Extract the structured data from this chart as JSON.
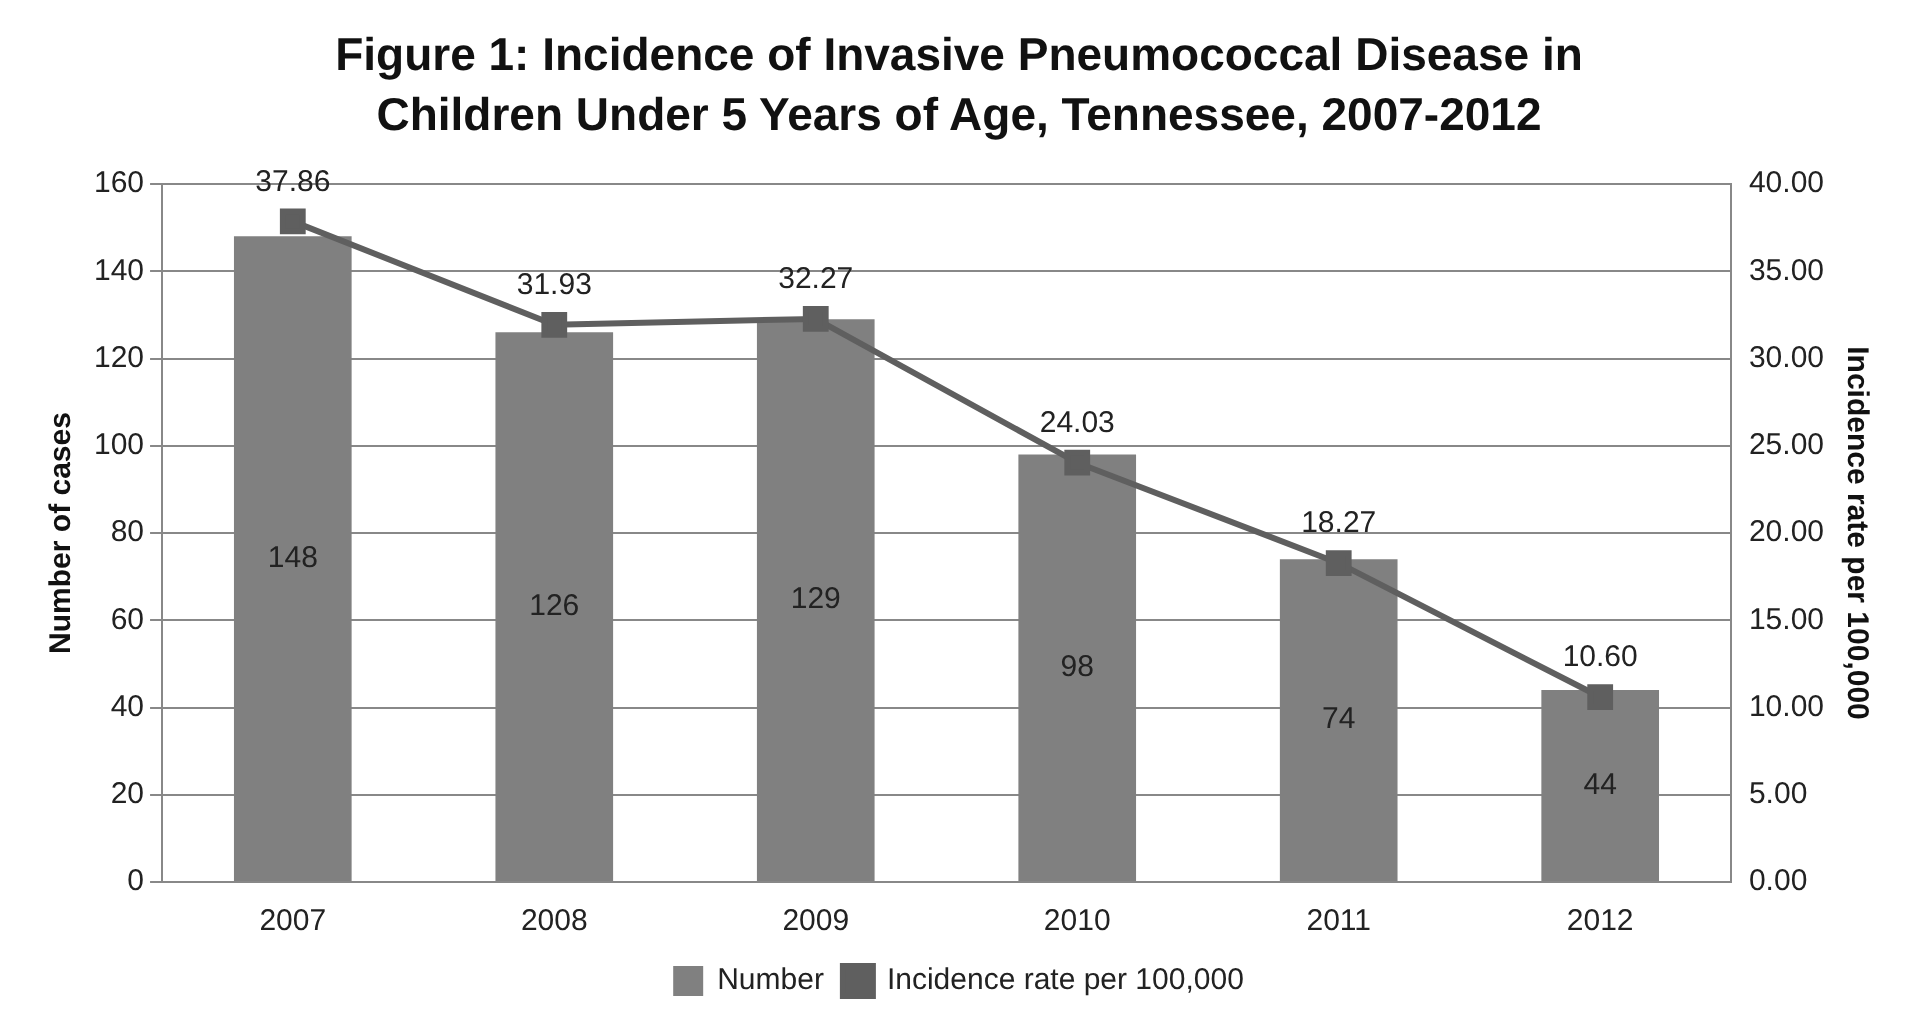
{
  "chart_data": {
    "type": "bar",
    "title": "Figure 1: Incidence of Invasive Pneumococcal Disease in Children Under 5 Years of Age, Tennessee, 2007-2012",
    "ylabel": "Number of cases",
    "y2label": "Incidence rate per 100,000",
    "categories": [
      "2007",
      "2008",
      "2009",
      "2010",
      "2011",
      "2012"
    ],
    "series": [
      {
        "name": "Number",
        "color": "#808080",
        "values": [
          148,
          126,
          129,
          98,
          74,
          44
        ],
        "value_labels": [
          "148",
          "126",
          "129",
          "98",
          "74",
          "44"
        ]
      },
      {
        "name": "Incidence rate per 100,000",
        "type": "line",
        "axis": "y2",
        "color": "#5f5f5f",
        "values": [
          37.86,
          31.93,
          32.27,
          24.03,
          18.27,
          10.6
        ],
        "value_labels": [
          "37.86",
          "31.93",
          "32.27",
          "24.03",
          "18.27",
          "10.60"
        ]
      }
    ],
    "ylim": [
      0,
      160
    ],
    "yticks": [
      0,
      20,
      40,
      60,
      80,
      100,
      120,
      140,
      160
    ],
    "y2lim": [
      0,
      40
    ],
    "y2ticks": [
      {
        "value": 0,
        "label": "0.00"
      },
      {
        "value": 5,
        "label": "5.00"
      },
      {
        "value": 10,
        "label": "10.00"
      },
      {
        "value": 15,
        "label": "15.00"
      },
      {
        "value": 20,
        "label": "20.00"
      },
      {
        "value": 25,
        "label": "25.00"
      },
      {
        "value": 30,
        "label": "30.00"
      },
      {
        "value": 35,
        "label": "35.00"
      },
      {
        "value": 40,
        "label": "40.00"
      }
    ],
    "grid": "y",
    "legend": "bottom",
    "marker": "square",
    "line_style": "solid"
  }
}
